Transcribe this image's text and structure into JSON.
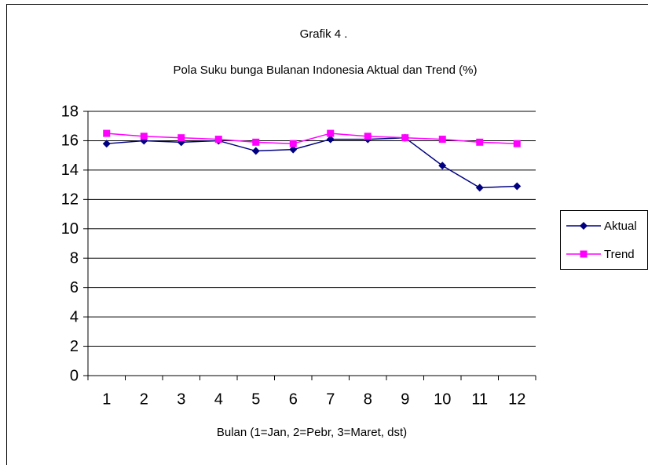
{
  "chart_data": {
    "type": "line",
    "title": "Grafik 4 .",
    "subtitle": "Pola Suku bunga Bulanan Indonesia Aktual dan  Trend   (%)",
    "x_label": "Bulan (1=Jan, 2=Pebr, 3=Maret, dst)",
    "categories": [
      "1",
      "2",
      "3",
      "4",
      "5",
      "6",
      "7",
      "8",
      "9",
      "10",
      "11",
      "12"
    ],
    "series": [
      {
        "name": "Aktual",
        "color": "#000080",
        "marker": "diamond",
        "values": [
          15.8,
          16.0,
          15.9,
          16.0,
          15.3,
          15.4,
          16.1,
          16.1,
          16.2,
          14.3,
          12.8,
          12.9
        ]
      },
      {
        "name": "Trend",
        "color": "#ff00ff",
        "marker": "square",
        "values": [
          16.5,
          16.3,
          16.2,
          16.1,
          15.9,
          15.8,
          16.5,
          16.3,
          16.2,
          16.1,
          15.9,
          15.8
        ]
      }
    ],
    "ylim": [
      0,
      18
    ],
    "yticks": [
      0,
      2,
      4,
      6,
      8,
      10,
      12,
      14,
      16,
      18
    ],
    "grid": true,
    "legend": "right"
  }
}
